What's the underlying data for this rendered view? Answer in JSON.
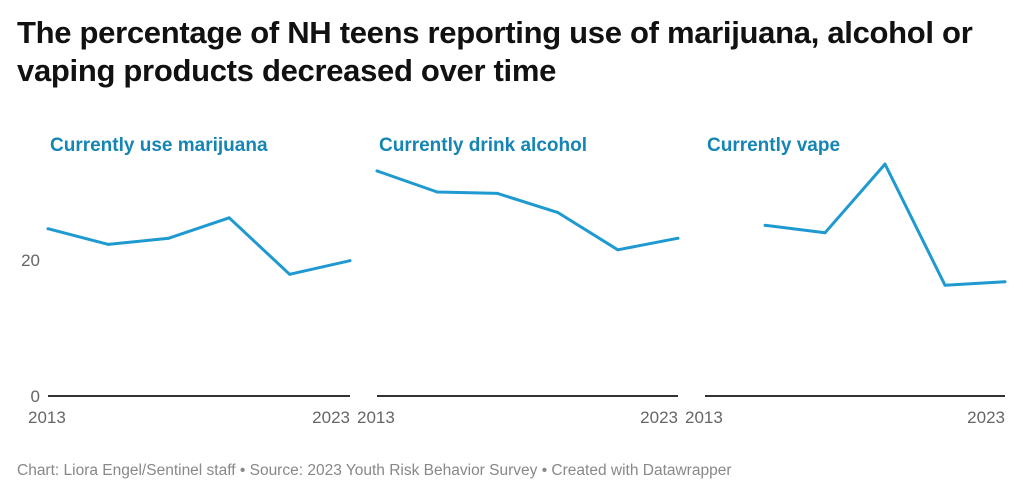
{
  "chart_data": {
    "type": "line",
    "title": "The percentage of NH teens reporting use of marijuana, alcohol or vaping products decreased over time",
    "x_tick_labels": [
      "2013",
      "2023"
    ],
    "y_tick_labels": [
      "0",
      "20"
    ],
    "ylim": [
      0,
      35
    ],
    "xlim": [
      2013,
      2023
    ],
    "grid": false,
    "line_color": "#1f9ad0",
    "title_color": "#1585b5",
    "panels": [
      {
        "title": "Currently use marijuana",
        "x": [
          2013,
          2015,
          2017,
          2019,
          2021,
          2023
        ],
        "values": [
          24.6,
          22.3,
          23.2,
          26.2,
          17.9,
          19.9
        ]
      },
      {
        "title": "Currently drink alcohol",
        "x": [
          2013,
          2015,
          2017,
          2019,
          2021,
          2023
        ],
        "values": [
          33.1,
          30.0,
          29.8,
          27.0,
          21.5,
          23.2
        ]
      },
      {
        "title": "Currently vape",
        "x": [
          2015,
          2017,
          2019,
          2021,
          2023
        ],
        "values": [
          25.1,
          24.0,
          34.1,
          16.3,
          16.8
        ]
      }
    ]
  },
  "footer": "Chart: Liora Engel/Sentinel staff • Source: 2023 Youth Risk Behavior Survey • Created with Datawrapper"
}
